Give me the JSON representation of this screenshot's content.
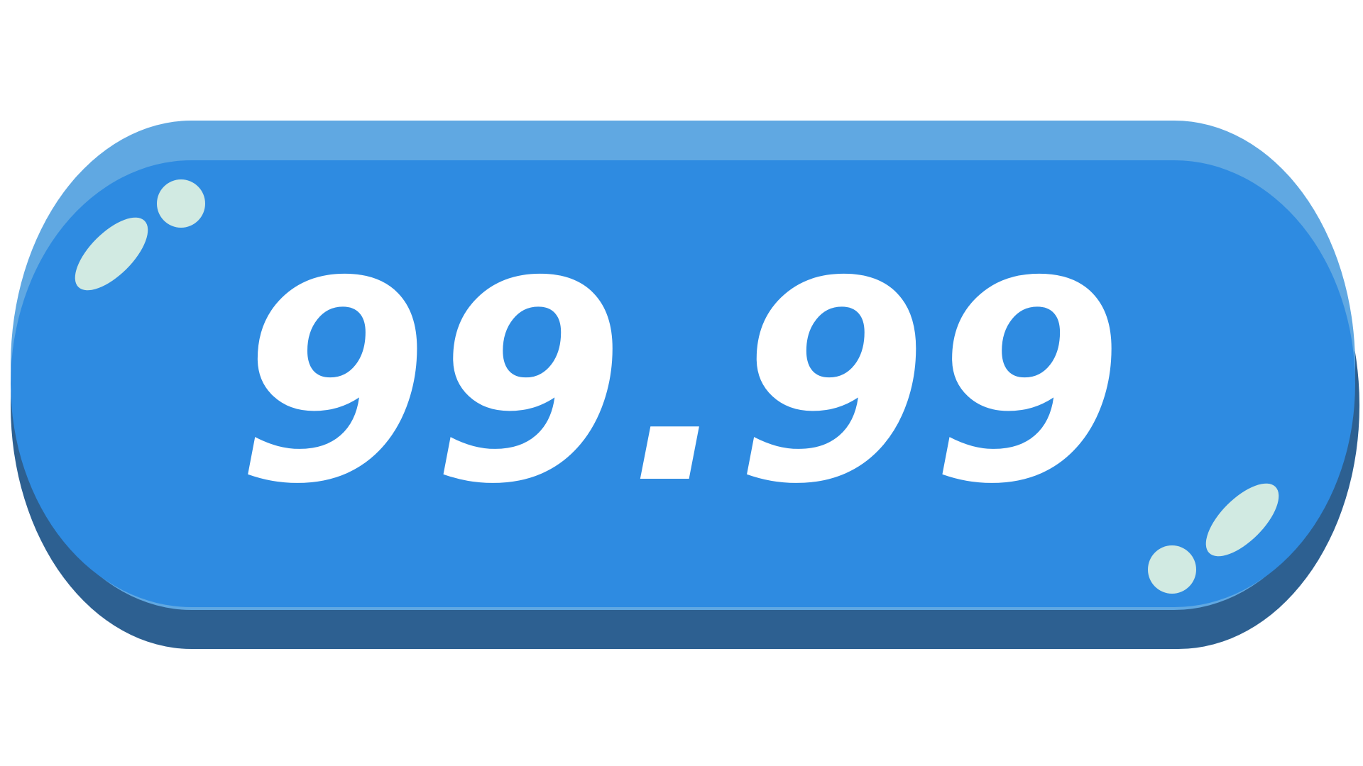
{
  "button": {
    "price_label": "99.99"
  },
  "colors": {
    "face": "#2E8BE1",
    "highlight": "#60A8E2",
    "shadow": "#2D6091",
    "sparkle": "#D1EAE2",
    "text": "#FFFFFF",
    "background": "#FFFFFF"
  },
  "icons": {
    "top_left": "sparkle-icon",
    "bottom_right": "sparkle-icon"
  }
}
